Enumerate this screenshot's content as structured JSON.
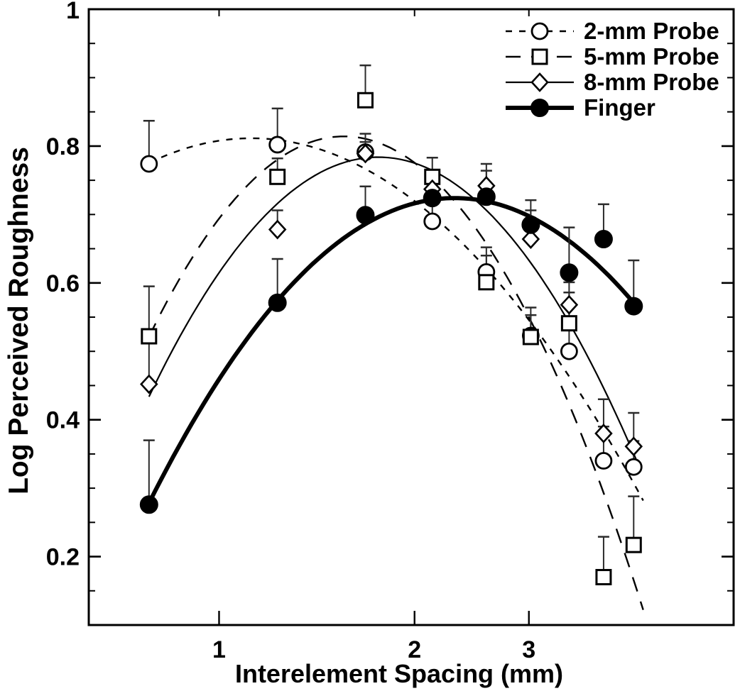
{
  "figure": {
    "background_color": "#ffffff",
    "ink_color": "#000000",
    "error_bar_color": "#2b2b2b"
  },
  "chart_data": {
    "type": "scatter",
    "title": "",
    "xlabel": "Interelement Spacing (mm)",
    "ylabel": "Log Perceived Roughness",
    "x_scale": "log",
    "y_scale": "linear",
    "xlim": [
      0.63,
      6.2
    ],
    "ylim": [
      0.1,
      1.0
    ],
    "grid": false,
    "legend_position": "top-right",
    "fit_note": "smooth quadratic curve (in log spacing) drawn through each series",
    "x_ticks": [
      {
        "value": 1,
        "label": "1"
      },
      {
        "value": 2,
        "label": "2"
      },
      {
        "value": 3,
        "label": "3"
      }
    ],
    "y_ticks": [
      {
        "value": 1.0,
        "label": "1"
      },
      {
        "value": 0.8,
        "label": "0.8"
      },
      {
        "value": 0.6,
        "label": "0.6"
      },
      {
        "value": 0.4,
        "label": "0.4"
      },
      {
        "value": 0.2,
        "label": "0.2"
      }
    ],
    "y_minor_tick_step": 0.05,
    "x": [
      0.78,
      1.23,
      1.68,
      2.13,
      2.58,
      3.02,
      3.46,
      3.91,
      4.35
    ],
    "series": [
      {
        "name": "2-mm Probe",
        "marker": "open-circle",
        "line": "dashed-short",
        "values": [
          0.774,
          0.802,
          0.791,
          0.69,
          0.616,
          0.523,
          0.5,
          0.34,
          0.331
        ],
        "upper_error": [
          0.063,
          0.053,
          0.027,
          0.025,
          0.036,
          0.03,
          0.042,
          0.05,
          0.038
        ]
      },
      {
        "name": "5-mm Probe",
        "marker": "open-square",
        "line": "dashed-long",
        "values": [
          0.522,
          0.755,
          0.867,
          0.755,
          0.601,
          0.521,
          0.541,
          0.17,
          0.217
        ],
        "upper_error": [
          0.073,
          0.027,
          0.051,
          0.028,
          0.039,
          0.043,
          0.045,
          0.059,
          0.071
        ]
      },
      {
        "name": "8-mm Probe",
        "marker": "open-diamond",
        "line": "solid-thin",
        "values": [
          0.452,
          0.678,
          0.789,
          0.737,
          0.742,
          0.664,
          0.568,
          0.38,
          0.361
        ],
        "upper_error": [
          0.062,
          0.028,
          0.017,
          0.027,
          0.032,
          0.042,
          0.033,
          0.05,
          0.049
        ]
      },
      {
        "name": "Finger",
        "marker": "filled-circle",
        "line": "solid-thick",
        "values": [
          0.276,
          0.571,
          0.699,
          0.724,
          0.726,
          0.685,
          0.615,
          0.664,
          0.566
        ],
        "upper_error": [
          0.094,
          0.064,
          0.042,
          0.04,
          0.038,
          0.036,
          0.066,
          0.051,
          0.067
        ]
      }
    ]
  }
}
